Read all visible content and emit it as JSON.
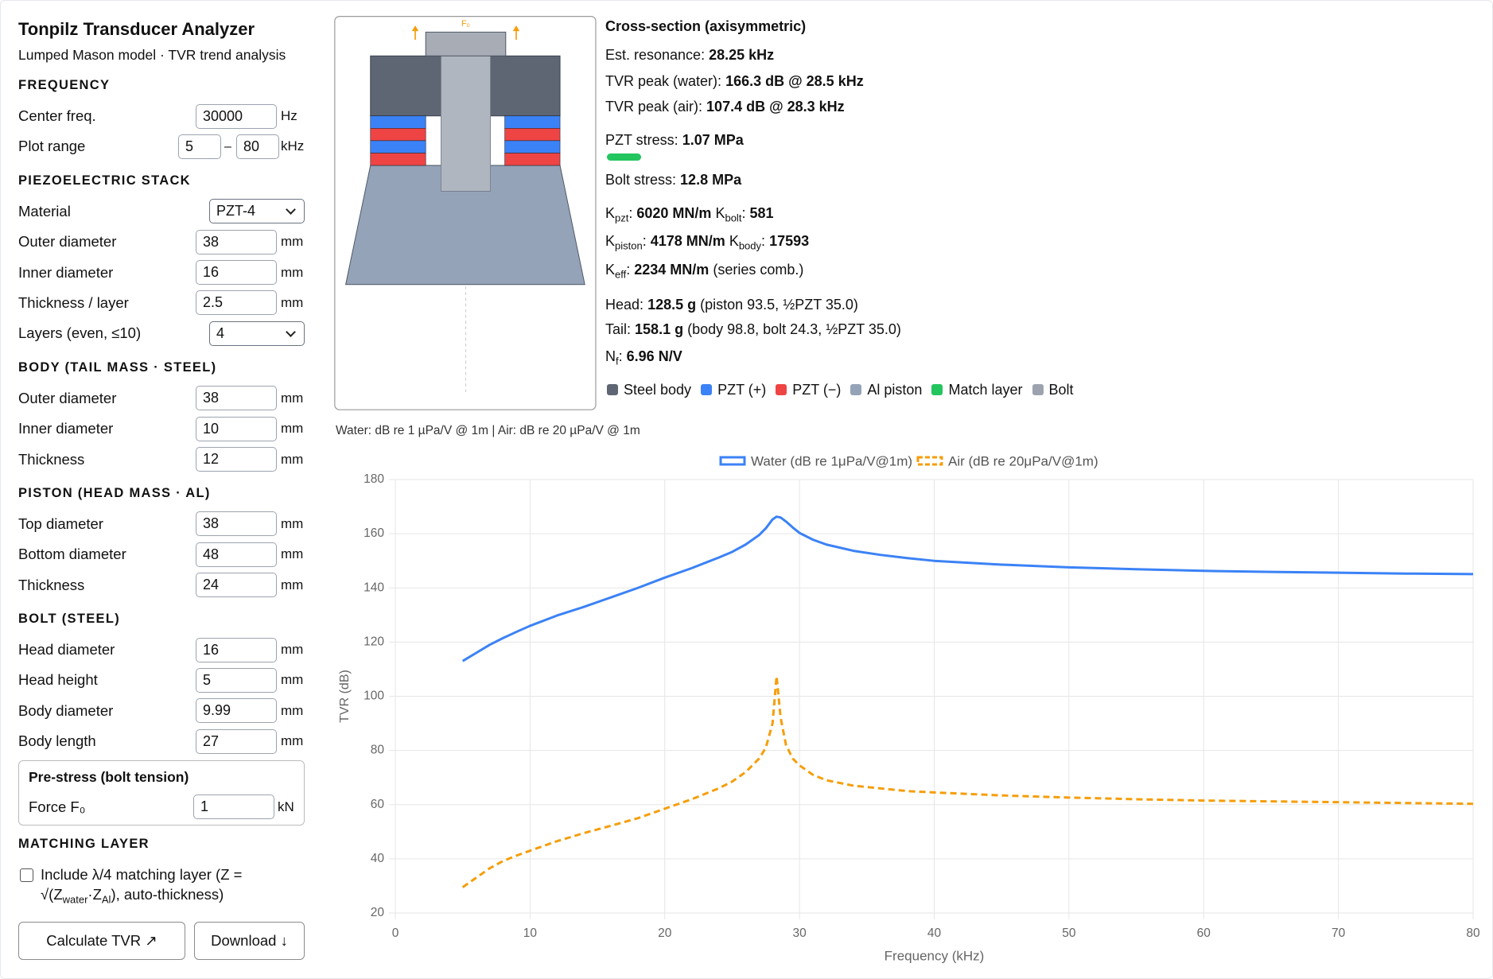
{
  "sidebar": {
    "title": "Tonpilz Transducer Analyzer",
    "subtitle": "Lumped Mason model · TVR trend analysis",
    "sections": [
      {
        "heading": "FREQUENCY",
        "fields": [
          {
            "label": "Center freq.",
            "value": "30000",
            "unit": "Hz"
          },
          {
            "label": "Plot range",
            "value": "5",
            "separator": "–",
            "value2": "80",
            "unit": "kHz"
          }
        ]
      },
      {
        "heading": "PIEZOELECTRIC STACK",
        "fields": [
          {
            "label": "Material",
            "value": "PZT-4",
            "control": "select"
          },
          {
            "label": "Outer diameter",
            "value": "38",
            "unit": "mm"
          },
          {
            "label": "Inner diameter",
            "value": "16",
            "unit": "mm"
          },
          {
            "label": "Thickness / layer",
            "value": "2.5",
            "unit": "mm"
          },
          {
            "label": "Layers (even, ≤10)",
            "value": "4",
            "control": "select"
          }
        ]
      },
      {
        "heading": "BODY (TAIL MASS · STEEL)",
        "fields": [
          {
            "label": "Outer diameter",
            "value": "38",
            "unit": "mm"
          },
          {
            "label": "Inner diameter",
            "value": "10",
            "unit": "mm"
          },
          {
            "label": "Thickness",
            "value": "12",
            "unit": "mm"
          }
        ]
      },
      {
        "heading": "PISTON (HEAD MASS · AL)",
        "fields": [
          {
            "label": "Top diameter",
            "value": "38",
            "unit": "mm"
          },
          {
            "label": "Bottom diameter",
            "value": "48",
            "unit": "mm"
          },
          {
            "label": "Thickness",
            "value": "24",
            "unit": "mm"
          }
        ]
      },
      {
        "heading": "BOLT (STEEL)",
        "fields": [
          {
            "label": "Head diameter",
            "value": "16",
            "unit": "mm"
          },
          {
            "label": "Head height",
            "value": "5",
            "unit": "mm"
          },
          {
            "label": "Body diameter",
            "value": "9.99",
            "unit": "mm"
          },
          {
            "label": "Body length",
            "value": "27",
            "unit": "mm"
          }
        ],
        "box": {
          "heading": "Pre-stress (bolt tension)",
          "fields": [
            {
              "label": "Force F₀",
              "value": "1",
              "unit": "kN"
            }
          ]
        }
      },
      {
        "heading": "MATCHING LAYER",
        "checkbox": {
          "checked": false,
          "parts": [
            "Include λ/4 matching layer (Z = √(Z",
            "water",
            "·Z",
            "Al",
            "), auto-thickness)"
          ]
        }
      }
    ],
    "buttons": [
      "Calculate TVR ↗",
      "Download ↓"
    ]
  },
  "diagram": {
    "force_label": "F₀"
  },
  "info": {
    "heading": "Cross-section (axisymmetric)",
    "colon": ":",
    "resonance": {
      "label": "Est. resonance:",
      "value": "28.25 kHz"
    },
    "peak_water": {
      "label": "TVR peak (water):",
      "value": "166.3 dB @ 28.5 kHz"
    },
    "peak_air": {
      "label": "TVR peak (air):",
      "value": "107.4 dB @ 28.3 kHz"
    },
    "pzt_stress": {
      "label": "PZT stress:",
      "value": "1.07 MPa"
    },
    "bolt_stress": {
      "label": "Bolt stress:",
      "value": "12.8 MPa"
    },
    "k_pzt": {
      "symbol": "K",
      "sub": "pzt",
      "value": "6020 MN/m"
    },
    "k_bolt": {
      "symbol": "K",
      "sub": "bolt",
      "value": "581"
    },
    "k_piston": {
      "symbol": "K",
      "sub": "piston",
      "value": "4178 MN/m"
    },
    "k_body": {
      "symbol": "K",
      "sub": "body",
      "value": "17593"
    },
    "k_eff": {
      "symbol": "K",
      "sub": "eff",
      "value": "2234 MN/m",
      "note": "(series comb.)"
    },
    "head": {
      "label": "Head:",
      "value": "128.5 g",
      "note": "(piston 93.5, ½PZT 35.0)"
    },
    "tail": {
      "label": "Tail:",
      "value": "158.1 g",
      "note": "(body 98.8, bolt 24.3, ½PZT 35.0)"
    },
    "nf": {
      "symbol": "N",
      "sub": "f",
      "value": "6.96 N/V"
    }
  },
  "diagram_legend": [
    {
      "name": "Steel body",
      "color": "#5f6673"
    },
    {
      "name": "PZT (+)",
      "color": "#3b82f6"
    },
    {
      "name": "PZT (−)",
      "color": "#ef4444"
    },
    {
      "name": "Al piston",
      "color": "#94a3b8"
    },
    {
      "name": "Match layer",
      "color": "#22c55e"
    },
    {
      "name": "Bolt",
      "color": "#9ca3af"
    }
  ],
  "chart_data": {
    "type": "line",
    "note": "Water: dB re 1 µPa/V @ 1m  |  Air: dB re 20 µPa/V @ 1m",
    "x_label": "Frequency (kHz)",
    "y_label": "TVR (dB)",
    "x": [
      5,
      6,
      7,
      8,
      9,
      10,
      12,
      14,
      16,
      18,
      20,
      22,
      24,
      25,
      26,
      27,
      27.5,
      28,
      28.3,
      28.6,
      29,
      29.5,
      30,
      31,
      32,
      34,
      36,
      38,
      40,
      45,
      50,
      55,
      60,
      65,
      70,
      75,
      80
    ],
    "series": [
      {
        "name": "Water (dB re 1μPa/V@1m)",
        "color": "#3b82f6",
        "dash": false,
        "values": [
          113,
          116,
          119,
          121.5,
          123.8,
          126,
          129.8,
          133,
          136.5,
          140,
          143.8,
          147.3,
          151.2,
          153.3,
          156,
          159.5,
          162,
          165.3,
          166.3,
          166,
          164.5,
          162.3,
          160.3,
          157.8,
          156,
          153.7,
          152.2,
          151,
          150,
          148.6,
          147.6,
          146.9,
          146.3,
          145.9,
          145.6,
          145.3,
          145.1
        ]
      },
      {
        "name": "Air (dB re 20μPa/V@1m)",
        "color": "#f59e0b",
        "dash": true,
        "values": [
          29.5,
          33,
          36.5,
          39.2,
          41.2,
          43,
          46.5,
          49.5,
          52.2,
          55,
          58.5,
          62,
          66,
          68.5,
          72,
          77,
          81,
          90,
          107.4,
          92,
          82,
          77,
          74.5,
          71,
          69,
          67,
          66,
          65,
          64.5,
          63.4,
          62.6,
          62,
          61.5,
          61.2,
          60.9,
          60.6,
          60.3
        ]
      }
    ],
    "xlim": [
      0,
      80
    ],
    "xticks": [
      0,
      10,
      20,
      30,
      40,
      50,
      60,
      70,
      80
    ],
    "ylim": [
      20,
      180
    ],
    "yticks": [
      20,
      40,
      60,
      80,
      100,
      120,
      140,
      160,
      180
    ],
    "grid": true
  }
}
